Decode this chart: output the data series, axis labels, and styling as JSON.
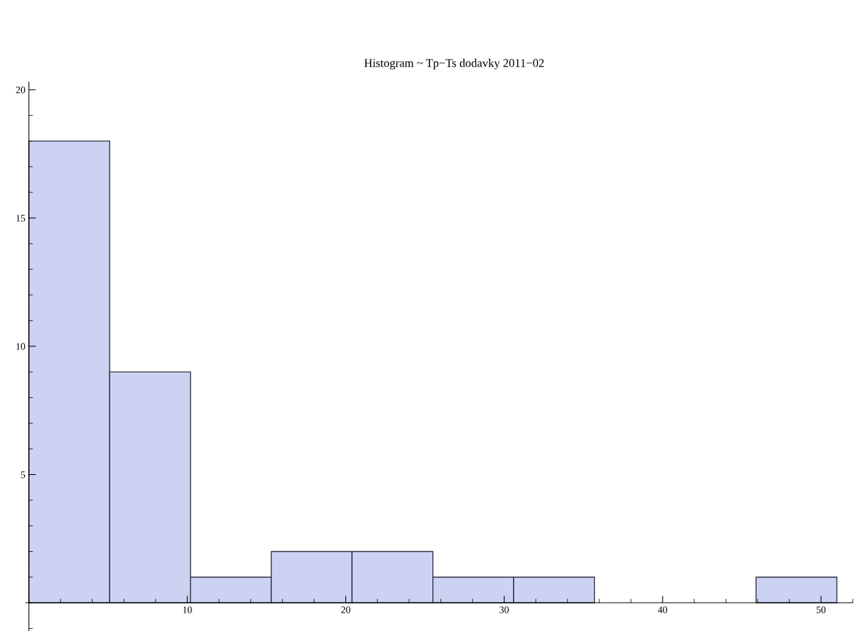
{
  "chart_data": {
    "type": "histogram",
    "title": "Histogram ~ Tp−Ts dodavky 2011−02",
    "bins": [
      0,
      5.1,
      10.2,
      15.3,
      20.4,
      25.5,
      30.6,
      35.7,
      40.8,
      45.9,
      51
    ],
    "values": [
      18,
      9,
      1,
      2,
      2,
      1,
      1,
      0,
      0,
      1
    ],
    "color": "#ccd3f2",
    "xlim": [
      -0.2,
      52
    ],
    "ylim": [
      -1.1,
      20.3
    ],
    "xticks": [
      10,
      20,
      30,
      40,
      50
    ],
    "yticks": [
      5,
      10,
      15,
      20
    ],
    "grid": false
  }
}
